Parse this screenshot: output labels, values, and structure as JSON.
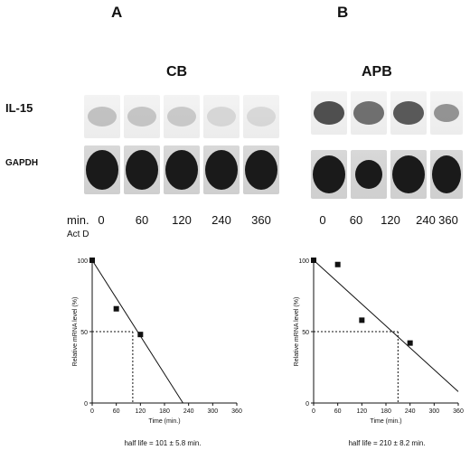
{
  "panels": [
    {
      "letter": "A",
      "group": "CB",
      "row_labels": [
        "IL-15",
        "GAPDH"
      ],
      "time_prefix": "min.",
      "time_sub": "Act D",
      "times": [
        "0",
        "60",
        "120",
        "240",
        "360"
      ],
      "half_life": "half life = 101 ± 5.8  min."
    },
    {
      "letter": "B",
      "group": "APB",
      "times": [
        "0",
        "60",
        "120",
        "240",
        "360"
      ],
      "half_life": "half life = 210 ± 8.2  min."
    }
  ],
  "chart_data": [
    {
      "type": "scatter",
      "xlabel": "Time (min.)",
      "ylabel": "Relative mRNA level (%)",
      "xlim": [
        0,
        360
      ],
      "ylim": [
        0,
        100
      ],
      "xticks": [
        0,
        60,
        120,
        180,
        240,
        300,
        360
      ],
      "yticks": [
        0,
        50,
        100
      ],
      "points": [
        [
          0,
          100
        ],
        [
          60,
          66
        ],
        [
          120,
          48
        ]
      ],
      "fit_line": [
        [
          0,
          100
        ],
        [
          226,
          0
        ]
      ],
      "half_life_marker": 101
    },
    {
      "type": "scatter",
      "xlabel": "Time (min.)",
      "ylabel": "Relative mRNA level (%)",
      "xlim": [
        0,
        360
      ],
      "ylim": [
        0,
        100
      ],
      "xticks": [
        0,
        60,
        120,
        180,
        240,
        300,
        360
      ],
      "yticks": [
        0,
        50,
        100
      ],
      "points": [
        [
          0,
          100
        ],
        [
          60,
          97
        ],
        [
          120,
          58
        ],
        [
          240,
          42
        ]
      ],
      "fit_line": [
        [
          0,
          100
        ],
        [
          360,
          8
        ]
      ],
      "half_life_marker": 210
    }
  ],
  "colors": {
    "ink": "#111111",
    "blot_dark": "#1a1a1a"
  }
}
